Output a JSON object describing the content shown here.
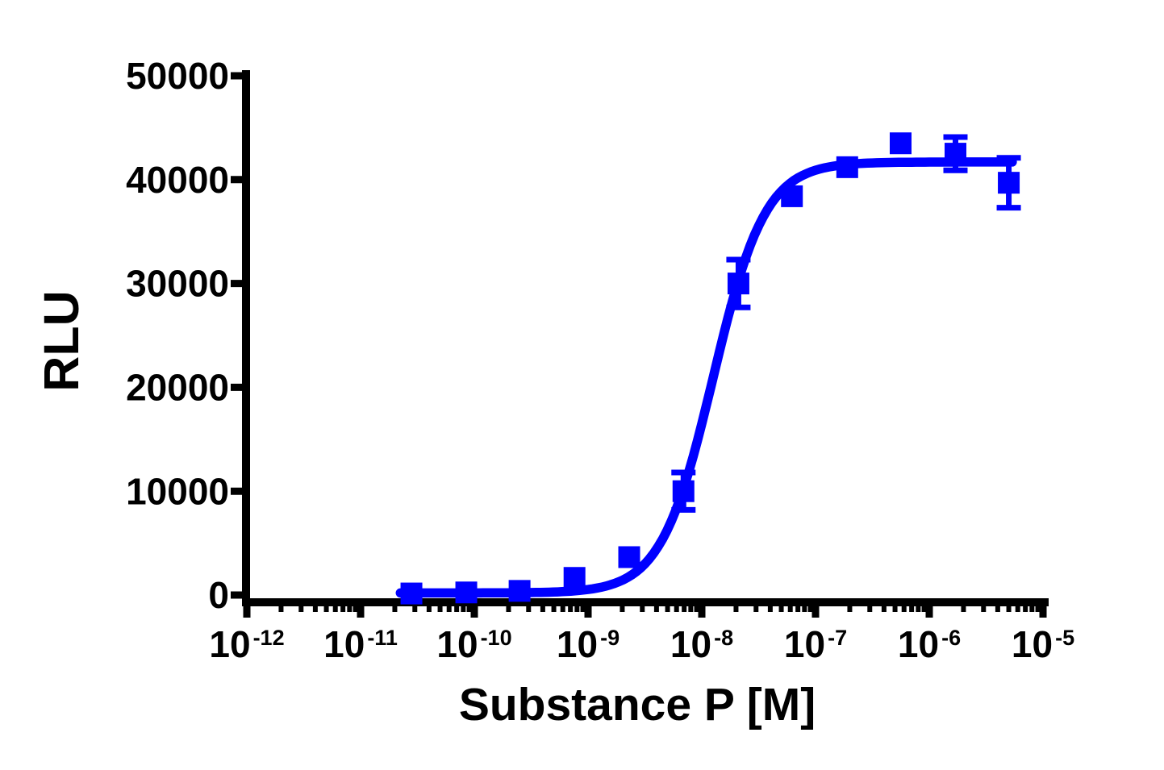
{
  "chart_data": {
    "type": "scatter",
    "title": "",
    "xlabel": "Substance P [M]",
    "ylabel": "RLU",
    "x_scale": "log10",
    "x_tick_base": "10",
    "x_tick_exponents": [
      -12,
      -11,
      -10,
      -9,
      -8,
      -7,
      -6,
      -5
    ],
    "x_minor_tick_multiples": [
      2,
      3,
      4,
      5,
      6,
      7,
      8,
      9
    ],
    "ylim": [
      0,
      50000
    ],
    "y_ticks": [
      0,
      10000,
      20000,
      30000,
      40000,
      50000
    ],
    "grid": false,
    "legend": "none",
    "axis_color": "#000000",
    "background_color": "#ffffff",
    "series": [
      {
        "name": "Substance P",
        "marker": "square",
        "color": "#0000FF",
        "points": [
          {
            "x_molar": 2.8e-11,
            "rlu": 150,
            "sem": 100
          },
          {
            "x_molar": 8.5e-11,
            "rlu": 250,
            "sem": 150
          },
          {
            "x_molar": 2.5e-10,
            "rlu": 400,
            "sem": 200
          },
          {
            "x_molar": 7.6e-10,
            "rlu": 1650,
            "sem": 400
          },
          {
            "x_molar": 2.3e-09,
            "rlu": 3650,
            "sem": 500
          },
          {
            "x_molar": 6.9e-09,
            "rlu": 10000,
            "sem": 1800
          },
          {
            "x_molar": 2.1e-08,
            "rlu": 30000,
            "sem": 2300
          },
          {
            "x_molar": 6.2e-08,
            "rlu": 38400,
            "sem": 600
          },
          {
            "x_molar": 1.9e-07,
            "rlu": 41200,
            "sem": 500
          },
          {
            "x_molar": 5.6e-07,
            "rlu": 43500,
            "sem": 400
          },
          {
            "x_molar": 1.7e-06,
            "rlu": 42500,
            "sem": 1600
          },
          {
            "x_molar": 5e-06,
            "rlu": 39700,
            "sem": 2400
          }
        ]
      }
    ],
    "fit_curve": {
      "model": "four-parameter logistic (dose-response)",
      "bottom": 200,
      "top": 41700,
      "log10_ec50": -7.9,
      "hill_slope": 1.9,
      "x_log_range": [
        -10.65,
        -5.27
      ]
    }
  }
}
